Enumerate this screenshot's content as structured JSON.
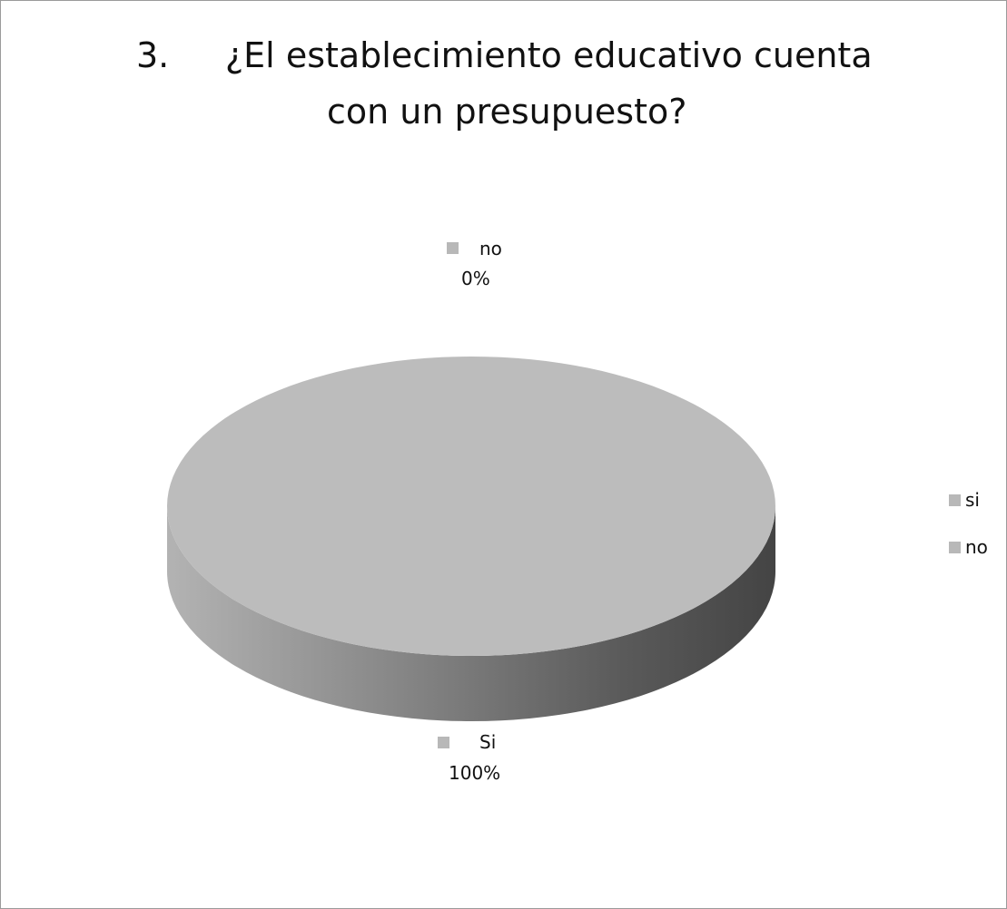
{
  "chart_data": {
    "type": "pie",
    "title_number": "3.",
    "title_line1": "¿El establecimiento educativo cuenta",
    "title_line2": "con un presupuesto?",
    "categories": [
      "si",
      "no"
    ],
    "values": [
      100,
      0
    ],
    "data_labels": [
      {
        "name": "Si",
        "percent": "100%"
      },
      {
        "name": "no",
        "percent": "0%"
      }
    ],
    "legend": {
      "placement": "right",
      "entries": [
        "si",
        "no"
      ]
    },
    "colors": {
      "top": "#bcbcbc",
      "side_light": "#b0b0b0",
      "side_dark": "#454545",
      "swatch": "#b8b8b8"
    },
    "style": "3d"
  }
}
